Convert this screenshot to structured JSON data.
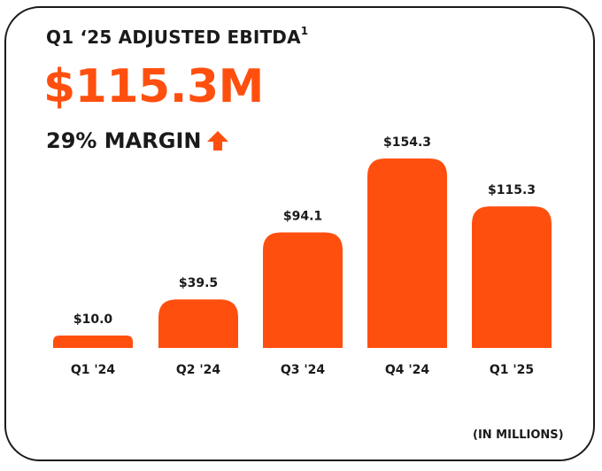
{
  "header": {
    "title": "Q1 ‘25 ADJUSTED EBITDA",
    "title_superscript": "1",
    "value": "$115.3M",
    "margin": "29% MARGIN",
    "trend_icon": "arrow-up-icon"
  },
  "colors": {
    "accent": "#ff4f0f",
    "text": "#1a1a1a",
    "border": "#1a1a1a"
  },
  "chart_data": {
    "type": "bar",
    "categories": [
      "Q1 '24",
      "Q2 '24",
      "Q3 '24",
      "Q4 '24",
      "Q1 '25"
    ],
    "values": [
      10.0,
      39.5,
      94.1,
      154.3,
      115.3
    ],
    "data_labels": [
      "$10.0",
      "$39.5",
      "$94.1",
      "$154.3",
      "$115.3"
    ],
    "title": "Q1 ‘25 ADJUSTED EBITDA",
    "xlabel": "",
    "ylabel": "",
    "unit_note": "(IN MILLIONS)",
    "grid": false,
    "color": "#ff4f0f"
  }
}
